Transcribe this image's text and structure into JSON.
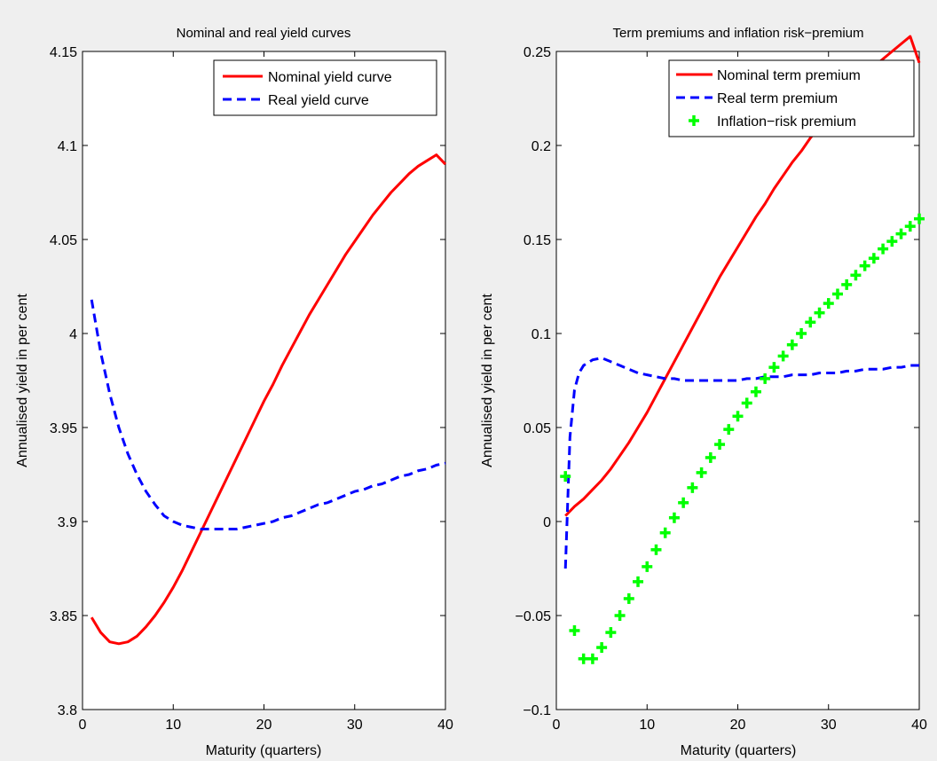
{
  "figure": {
    "background": "#efefef"
  },
  "chart_data": [
    {
      "type": "line",
      "title": "Nominal and real yield curves",
      "xlabel": "Maturity (quarters)",
      "ylabel": "Annualised yield in per cent",
      "xlim": [
        0,
        40
      ],
      "ylim": [
        3.8,
        4.15
      ],
      "xticks": [
        0,
        10,
        20,
        30,
        40
      ],
      "xtick_labels": [
        "0",
        "10",
        "20",
        "30",
        "40"
      ],
      "yticks": [
        3.8,
        3.85,
        3.9,
        3.95,
        4.0,
        4.05,
        4.1,
        4.15
      ],
      "ytick_labels": [
        "3.8",
        "3.85",
        "3.9",
        "3.95",
        "4",
        "4.05",
        "4.1",
        "4.15"
      ],
      "grid": false,
      "legend_position": "top-right",
      "series": [
        {
          "name": "Nominal yield curve",
          "color": "#ff0000",
          "style": "solid",
          "x": [
            1,
            2,
            3,
            4,
            5,
            6,
            7,
            8,
            9,
            10,
            11,
            12,
            13,
            14,
            15,
            16,
            17,
            18,
            19,
            20,
            21,
            22,
            23,
            24,
            25,
            26,
            27,
            28,
            29,
            30,
            31,
            32,
            33,
            34,
            35,
            36,
            37,
            38,
            39,
            40
          ],
          "y": [
            3.849,
            3.841,
            3.836,
            3.835,
            3.836,
            3.839,
            3.844,
            3.85,
            3.857,
            3.865,
            3.874,
            3.884,
            3.894,
            3.904,
            3.914,
            3.924,
            3.934,
            3.944,
            3.954,
            3.964,
            3.973,
            3.983,
            3.992,
            4.001,
            4.01,
            4.018,
            4.026,
            4.034,
            4.042,
            4.049,
            4.056,
            4.063,
            4.069,
            4.075,
            4.08,
            4.085,
            4.089,
            4.092,
            4.095,
            4.09
          ]
        },
        {
          "name": "Real yield curve",
          "color": "#0000ff",
          "style": "dashed",
          "x": [
            1,
            2,
            3,
            4,
            5,
            6,
            7,
            8,
            9,
            10,
            11,
            12,
            13,
            14,
            15,
            16,
            17,
            18,
            19,
            20,
            21,
            22,
            23,
            24,
            25,
            26,
            27,
            28,
            29,
            30,
            31,
            32,
            33,
            34,
            35,
            36,
            37,
            38,
            39,
            40
          ],
          "y": [
            4.018,
            3.99,
            3.968,
            3.95,
            3.936,
            3.925,
            3.916,
            3.909,
            3.903,
            3.9,
            3.898,
            3.897,
            3.896,
            3.896,
            3.896,
            3.896,
            3.896,
            3.897,
            3.898,
            3.899,
            3.9,
            3.902,
            3.903,
            3.905,
            3.907,
            3.909,
            3.91,
            3.912,
            3.914,
            3.916,
            3.917,
            3.919,
            3.92,
            3.922,
            3.924,
            3.925,
            3.927,
            3.928,
            3.93,
            3.931
          ]
        }
      ]
    },
    {
      "type": "line",
      "title": "Term premiums and inflation risk−premium",
      "xlabel": "Maturity (quarters)",
      "ylabel": "Annualised yield in per cent",
      "xlim": [
        0,
        40
      ],
      "ylim": [
        -0.1,
        0.25
      ],
      "xticks": [
        0,
        10,
        20,
        30,
        40
      ],
      "xtick_labels": [
        "0",
        "10",
        "20",
        "30",
        "40"
      ],
      "yticks": [
        -0.1,
        -0.05,
        0,
        0.05,
        0.1,
        0.15,
        0.2,
        0.25
      ],
      "ytick_labels": [
        "−0.1",
        "−0.05",
        "0",
        "0.05",
        "0.1",
        "0.15",
        "0.2",
        "0.25"
      ],
      "grid": false,
      "legend_position": "top-right",
      "series": [
        {
          "name": "Nominal term premium",
          "color": "#ff0000",
          "style": "solid",
          "x": [
            1,
            2,
            3,
            4,
            5,
            6,
            7,
            8,
            9,
            10,
            11,
            12,
            13,
            14,
            15,
            16,
            17,
            18,
            19,
            20,
            21,
            22,
            23,
            24,
            25,
            26,
            27,
            28,
            29,
            30,
            31,
            32,
            33,
            34,
            35,
            36,
            37,
            38,
            39,
            40
          ],
          "y": [
            0.003,
            0.008,
            0.012,
            0.017,
            0.022,
            0.028,
            0.035,
            0.042,
            0.05,
            0.058,
            0.067,
            0.076,
            0.085,
            0.094,
            0.103,
            0.112,
            0.121,
            0.13,
            0.138,
            0.146,
            0.154,
            0.162,
            0.169,
            0.177,
            0.184,
            0.191,
            0.197,
            0.204,
            0.21,
            0.216,
            0.222,
            0.227,
            0.232,
            0.237,
            0.242,
            0.246,
            0.25,
            0.254,
            0.258,
            0.244
          ]
        },
        {
          "name": "Real term premium",
          "color": "#0000ff",
          "style": "dashed",
          "x": [
            1,
            1.5,
            2,
            2.5,
            3,
            4,
            5,
            6,
            7,
            8,
            9,
            10,
            11,
            12,
            13,
            14,
            15,
            16,
            17,
            18,
            19,
            20,
            21,
            22,
            23,
            24,
            25,
            26,
            27,
            28,
            29,
            30,
            31,
            32,
            33,
            34,
            35,
            36,
            37,
            38,
            39,
            40
          ],
          "y": [
            -0.025,
            0.045,
            0.07,
            0.079,
            0.083,
            0.086,
            0.087,
            0.085,
            0.083,
            0.081,
            0.079,
            0.078,
            0.077,
            0.076,
            0.076,
            0.075,
            0.075,
            0.075,
            0.075,
            0.075,
            0.075,
            0.075,
            0.076,
            0.076,
            0.077,
            0.077,
            0.077,
            0.078,
            0.078,
            0.078,
            0.079,
            0.079,
            0.079,
            0.08,
            0.08,
            0.081,
            0.081,
            0.081,
            0.082,
            0.082,
            0.083,
            0.083
          ]
        },
        {
          "name": "Inflation−risk premium",
          "color": "#00ff00",
          "style": "marker-plus",
          "x": [
            1,
            2,
            3,
            4,
            5,
            6,
            7,
            8,
            9,
            10,
            11,
            12,
            13,
            14,
            15,
            16,
            17,
            18,
            19,
            20,
            21,
            22,
            23,
            24,
            25,
            26,
            27,
            28,
            29,
            30,
            31,
            32,
            33,
            34,
            35,
            36,
            37,
            38,
            39,
            40
          ],
          "y": [
            0.024,
            -0.058,
            -0.073,
            -0.073,
            -0.067,
            -0.059,
            -0.05,
            -0.041,
            -0.032,
            -0.024,
            -0.015,
            -0.006,
            0.002,
            0.01,
            0.018,
            0.026,
            0.034,
            0.041,
            0.049,
            0.056,
            0.063,
            0.069,
            0.076,
            0.082,
            0.088,
            0.094,
            0.1,
            0.106,
            0.111,
            0.116,
            0.121,
            0.126,
            0.131,
            0.136,
            0.14,
            0.145,
            0.149,
            0.153,
            0.157,
            0.161
          ]
        }
      ]
    }
  ]
}
